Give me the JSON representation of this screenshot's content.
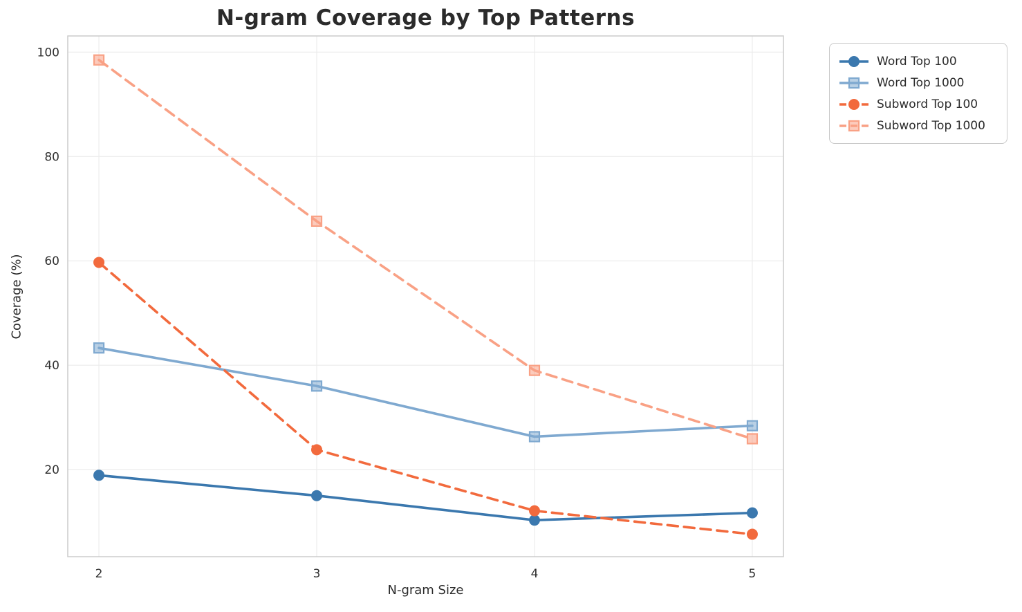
{
  "chart_data": {
    "type": "line",
    "title": "N-gram Coverage by Top Patterns",
    "xlabel": "N-gram Size",
    "ylabel": "Coverage (%)",
    "x": [
      2,
      3,
      4,
      5
    ],
    "xticks": [
      2,
      3,
      4,
      5
    ],
    "yticks": [
      20,
      40,
      60,
      80,
      100
    ],
    "xlim": [
      1.857,
      5.143
    ],
    "ylim": [
      3.3,
      103.1
    ],
    "grid": true,
    "grid_color": "#ececec",
    "spine_color": "#cccccc",
    "legend_position": "outside-upper-right",
    "series": [
      {
        "name": "Word Top 100",
        "values": [
          18.9,
          15.0,
          10.3,
          11.7
        ],
        "color": "#3b78ae",
        "line_style": "solid",
        "marker": "circle"
      },
      {
        "name": "Word Top 1000",
        "values": [
          43.3,
          36.0,
          26.3,
          28.4
        ],
        "color": "#7fa9d0",
        "line_style": "solid",
        "marker": "square"
      },
      {
        "name": "Subword Top 100",
        "values": [
          59.7,
          23.8,
          12.1,
          7.6
        ],
        "color": "#f26a3d",
        "line_style": "dashed",
        "marker": "circle"
      },
      {
        "name": "Subword Top 1000",
        "values": [
          98.5,
          67.6,
          39.0,
          25.9
        ],
        "color": "#f9a185",
        "line_style": "dashed",
        "marker": "square"
      }
    ]
  }
}
